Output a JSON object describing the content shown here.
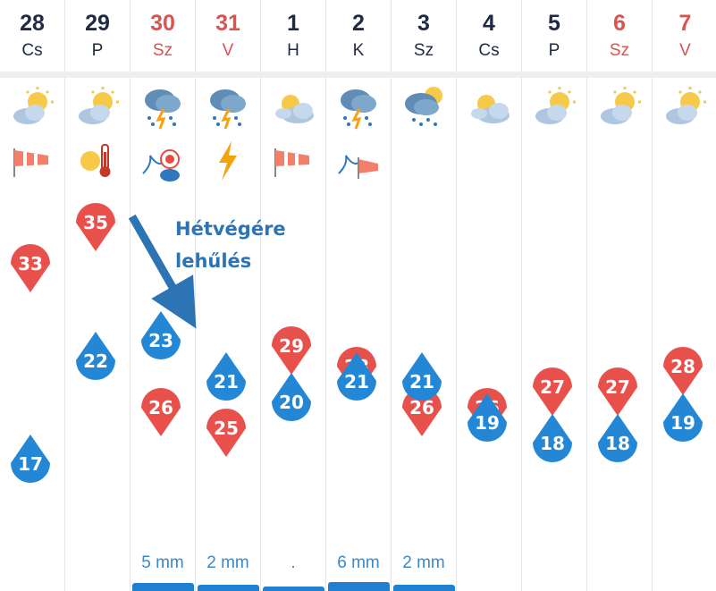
{
  "days": [
    {
      "date": "28",
      "weekday": "Cs",
      "weekend": false,
      "max": 33,
      "min": 17,
      "precip": "",
      "icon": "sun-cloud-icon",
      "extra": [
        "wind-icon"
      ]
    },
    {
      "date": "29",
      "weekday": "P",
      "weekend": false,
      "max": 35,
      "min": 22,
      "precip": "",
      "icon": "sun-cloud-icon",
      "extra": [
        "heat-icon"
      ]
    },
    {
      "date": "30",
      "weekday": "Sz",
      "weekend": true,
      "max": 26,
      "min": 23,
      "precip": "5 mm",
      "icon": "storm-rain-icon",
      "extra": [
        "storm-warning-icon"
      ]
    },
    {
      "date": "31",
      "weekday": "V",
      "weekend": true,
      "max": 25,
      "min": 21,
      "precip": "2 mm",
      "icon": "storm-rain-icon",
      "extra": [
        "lightning-icon"
      ]
    },
    {
      "date": "1",
      "weekday": "H",
      "weekend": false,
      "max": 29,
      "min": 20,
      "precip": ".",
      "icon": "cloud-sun-icon",
      "extra": [
        "wind-icon"
      ]
    },
    {
      "date": "2",
      "weekday": "K",
      "weekend": false,
      "max": 28,
      "min": 21,
      "precip": "6 mm",
      "icon": "storm-rain-icon",
      "extra": [
        "wind-storm-icon"
      ]
    },
    {
      "date": "3",
      "weekday": "Sz",
      "weekend": false,
      "max": 26,
      "min": 21,
      "precip": "2 mm",
      "icon": "rain-sun-icon",
      "extra": []
    },
    {
      "date": "4",
      "weekday": "Cs",
      "weekend": false,
      "max": 26,
      "min": 19,
      "precip": "",
      "icon": "cloud-sun-icon",
      "extra": []
    },
    {
      "date": "5",
      "weekday": "P",
      "weekend": false,
      "max": 27,
      "min": 18,
      "precip": "",
      "icon": "sun-cloud-icon",
      "extra": []
    },
    {
      "date": "6",
      "weekday": "Sz",
      "weekend": true,
      "max": 27,
      "min": 18,
      "precip": "",
      "icon": "sun-cloud-icon",
      "extra": []
    },
    {
      "date": "7",
      "weekday": "V",
      "weekend": true,
      "max": 28,
      "min": 19,
      "precip": "",
      "icon": "sun-cloud-icon",
      "extra": []
    }
  ],
  "precip_levels": [
    0,
    0,
    0.8,
    0.5,
    0.15,
    1.0,
    0.5,
    0,
    0,
    0,
    0
  ],
  "annotation": {
    "line1": "Hétvégére",
    "line2": "lehűlés"
  },
  "colors": {
    "max_marker": "#e8514b",
    "min_marker": "#2387d6",
    "weekend_text": "#d9534f",
    "note": "#2c74b4",
    "precip_bar": "#1f7fd0"
  }
}
